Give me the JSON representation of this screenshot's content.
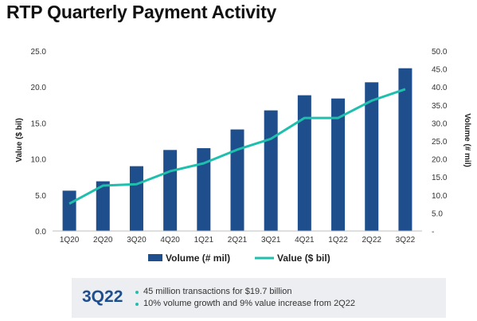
{
  "title": "RTP Quarterly Payment Activity",
  "chart_data": {
    "type": "bar",
    "categories": [
      "1Q20",
      "2Q20",
      "3Q20",
      "4Q20",
      "1Q21",
      "2Q21",
      "3Q21",
      "4Q21",
      "1Q22",
      "2Q22",
      "3Q22"
    ],
    "series": [
      {
        "name": "Volume (# mil)",
        "type": "bar",
        "axis": "right",
        "color": "#1f4e8c",
        "values": [
          11.2,
          13.8,
          18.0,
          22.5,
          23.0,
          28.2,
          33.5,
          37.7,
          36.8,
          41.3,
          45.2
        ]
      },
      {
        "name": "Value ($ bil)",
        "type": "line",
        "axis": "left",
        "color": "#1fbfae",
        "values": [
          3.8,
          6.3,
          6.5,
          8.3,
          9.4,
          11.3,
          12.8,
          15.7,
          15.7,
          18.1,
          19.7
        ]
      }
    ],
    "ylabel_left": "Value ($ bil)",
    "ylabel_right": "Volume (# mil)",
    "ylim_left": [
      0,
      25
    ],
    "ylim_right": [
      0,
      50
    ],
    "yticks_left": [
      "0.0",
      "5.0",
      "10.0",
      "15.0",
      "20.0",
      "25.0"
    ],
    "yticks_right": [
      "-",
      "5.0",
      "10.0",
      "15.0",
      "20.0",
      "25.0",
      "30.0",
      "35.0",
      "40.0",
      "45.0",
      "50.0"
    ],
    "legend": "bottom",
    "grid": false
  },
  "callout": {
    "label": "3Q22",
    "bullets": [
      "45 million transactions for $19.7 billion",
      "10% volume growth and 9% value increase from 2Q22"
    ]
  }
}
